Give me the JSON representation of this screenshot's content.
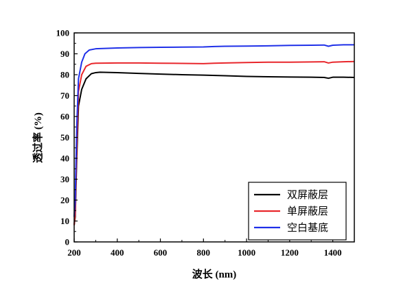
{
  "chart_data": {
    "type": "line",
    "xlabel": "波长 (nm)",
    "ylabel": "透过率 (%)",
    "xlim": [
      200,
      1500
    ],
    "ylim": [
      0,
      100
    ],
    "xticks": [
      200,
      400,
      600,
      800,
      1000,
      1200,
      1400
    ],
    "yticks": [
      0,
      10,
      20,
      30,
      40,
      50,
      60,
      70,
      80,
      90,
      100
    ],
    "grid": false,
    "legend_position": "bottom-right",
    "series": [
      {
        "name": "双屏蔽层",
        "color": "#000000",
        "points": [
          [
            200,
            8
          ],
          [
            205,
            12
          ],
          [
            212,
            40
          ],
          [
            220,
            65
          ],
          [
            235,
            73
          ],
          [
            255,
            78
          ],
          [
            280,
            80.5
          ],
          [
            300,
            81
          ],
          [
            320,
            81.2
          ],
          [
            400,
            81
          ],
          [
            500,
            80.6
          ],
          [
            600,
            80.3
          ],
          [
            700,
            80
          ],
          [
            800,
            79.8
          ],
          [
            900,
            79.5
          ],
          [
            1000,
            79.2
          ],
          [
            1100,
            79
          ],
          [
            1200,
            78.9
          ],
          [
            1300,
            78.8
          ],
          [
            1360,
            78.7
          ],
          [
            1380,
            78.3
          ],
          [
            1400,
            78.8
          ],
          [
            1450,
            78.8
          ],
          [
            1500,
            78.7
          ]
        ]
      },
      {
        "name": "单屏蔽层",
        "color": "#e8252a",
        "points": [
          [
            200,
            8
          ],
          [
            205,
            14
          ],
          [
            212,
            45
          ],
          [
            220,
            72
          ],
          [
            235,
            80
          ],
          [
            255,
            84
          ],
          [
            280,
            85.3
          ],
          [
            300,
            85.5
          ],
          [
            400,
            85.6
          ],
          [
            500,
            85.6
          ],
          [
            600,
            85.5
          ],
          [
            700,
            85.4
          ],
          [
            800,
            85.3
          ],
          [
            850,
            85.5
          ],
          [
            900,
            85.6
          ],
          [
            1000,
            85.8
          ],
          [
            1100,
            86
          ],
          [
            1200,
            86
          ],
          [
            1300,
            86.1
          ],
          [
            1360,
            86.2
          ],
          [
            1380,
            85.6
          ],
          [
            1400,
            86
          ],
          [
            1450,
            86.2
          ],
          [
            1500,
            86.3
          ]
        ]
      },
      {
        "name": "空白基底",
        "color": "#1e2fe8",
        "points": [
          [
            200,
            12
          ],
          [
            205,
            20
          ],
          [
            212,
            55
          ],
          [
            220,
            78
          ],
          [
            235,
            86
          ],
          [
            250,
            90
          ],
          [
            270,
            91.8
          ],
          [
            300,
            92.4
          ],
          [
            400,
            92.8
          ],
          [
            500,
            93
          ],
          [
            600,
            93.1
          ],
          [
            700,
            93.2
          ],
          [
            800,
            93.3
          ],
          [
            850,
            93.5
          ],
          [
            900,
            93.6
          ],
          [
            1000,
            93.7
          ],
          [
            1100,
            93.8
          ],
          [
            1200,
            94
          ],
          [
            1300,
            94.1
          ],
          [
            1360,
            94.2
          ],
          [
            1380,
            93.6
          ],
          [
            1400,
            94.1
          ],
          [
            1450,
            94.3
          ],
          [
            1500,
            94.3
          ]
        ]
      }
    ]
  }
}
